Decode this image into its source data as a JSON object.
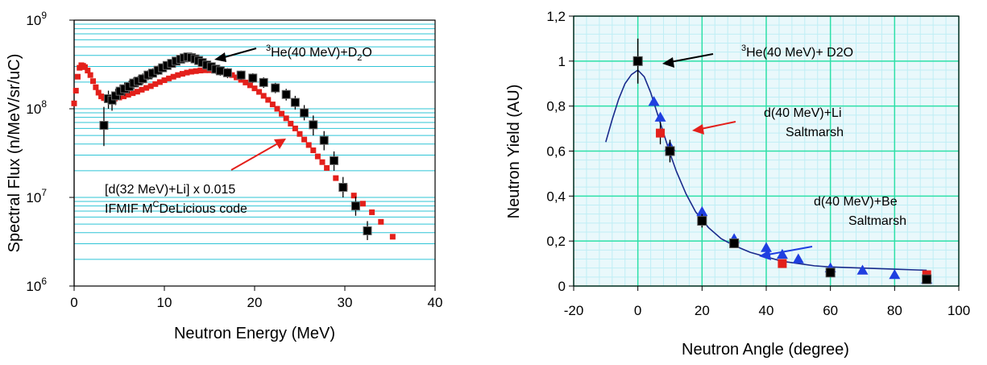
{
  "chart_data": [
    {
      "type": "scatter",
      "xlabel": "Neutron Energy (MeV)",
      "ylabel": "Spectral Flux (n/MeV/sr/uC)",
      "xlim": [
        0,
        40
      ],
      "ylim": [
        1000000,
        1000000000
      ],
      "yscale": "log",
      "grid": "horizontal",
      "x_ticks": [
        "0",
        "10",
        "20",
        "30",
        "40"
      ],
      "y_ticks": [
        {
          "base": "10",
          "exp": "6",
          "value": 1000000
        },
        {
          "base": "10",
          "exp": "7",
          "value": 10000000
        },
        {
          "base": "10",
          "exp": "8",
          "value": 100000000
        },
        {
          "base": "10",
          "exp": "9",
          "value": 1000000000
        }
      ],
      "annotations": {
        "he3_pre": "",
        "he3_sup": "3",
        "he3_main": "He(40 MeV)+D",
        "he3_sub": "2",
        "he3_post": "O",
        "dli_line1": "[d(32 MeV)+Li] x 0.015",
        "dli_line2_pre": "IFMIF M",
        "dli_line2_sup": "C",
        "dli_line2_post": "DeLicious code"
      },
      "series": [
        {
          "color": "#000000",
          "marker": "square",
          "x": [
            3.3,
            3.8,
            4.2,
            4.6,
            5.1,
            5.6,
            6.1,
            6.6,
            7.1,
            7.6,
            8.2,
            8.7,
            9.3,
            9.8,
            10.3,
            10.8,
            11.3,
            11.8,
            12.2,
            12.6,
            13.0,
            13.4,
            13.8,
            14.2,
            14.7,
            15.2,
            15.7,
            16.2,
            17.0,
            18.5,
            19.8,
            21.0,
            22.3,
            23.5,
            24.5,
            25.5,
            26.5,
            27.7,
            28.8,
            29.8,
            31.2,
            32.5
          ],
          "y": [
            65000000,
            130000000,
            125000000,
            140000000,
            158000000,
            168000000,
            178000000,
            195000000,
            205000000,
            218000000,
            240000000,
            252000000,
            272000000,
            290000000,
            308000000,
            325000000,
            345000000,
            362000000,
            375000000,
            385000000,
            378000000,
            365000000,
            350000000,
            332000000,
            312000000,
            298000000,
            280000000,
            268000000,
            255000000,
            240000000,
            222000000,
            198000000,
            172000000,
            145000000,
            118000000,
            90000000,
            66000000,
            44000000,
            26000000,
            13000000,
            8000000,
            4200000
          ],
          "err_low": [
            38000000,
            100000000,
            95000000,
            110000000,
            128000000,
            140000000,
            150000000,
            165000000,
            175000000,
            188000000,
            210000000,
            222000000,
            240000000,
            258000000,
            276000000,
            290000000,
            308000000,
            325000000,
            335000000,
            345000000,
            338000000,
            326000000,
            312000000,
            296000000,
            278000000,
            265000000,
            248000000,
            236000000,
            222000000,
            212000000,
            196000000,
            172000000,
            150000000,
            124000000,
            98000000,
            74000000,
            50000000,
            34000000,
            20000000,
            10000000,
            6200000,
            3300000
          ],
          "err_high": [
            105000000,
            160000000,
            152000000,
            168000000,
            188000000,
            198000000,
            208000000,
            225000000,
            235000000,
            250000000,
            272000000,
            286000000,
            308000000,
            325000000,
            342000000,
            360000000,
            382000000,
            400000000,
            415000000,
            425000000,
            418000000,
            404000000,
            390000000,
            368000000,
            348000000,
            332000000,
            312000000,
            300000000,
            288000000,
            270000000,
            252000000,
            226000000,
            196000000,
            168000000,
            140000000,
            110000000,
            84000000,
            56000000,
            33000000,
            17000000,
            10200000,
            5400000
          ]
        },
        {
          "color": "#e3201b",
          "marker": "square",
          "x": [
            0.0,
            0.2,
            0.4,
            0.6,
            0.8,
            1.0,
            1.2,
            1.5,
            1.8,
            2.1,
            2.4,
            2.7,
            3.0,
            3.3,
            3.6,
            4.0,
            4.5,
            5.0,
            5.5,
            6.0,
            6.5,
            7.0,
            7.5,
            8.0,
            8.5,
            9.0,
            9.5,
            10.0,
            10.5,
            11.0,
            11.5,
            12.0,
            12.5,
            13.0,
            13.5,
            14.0,
            14.5,
            15.0,
            15.5,
            16.0,
            16.5,
            17.0,
            17.5,
            18.0,
            18.5,
            19.0,
            19.5,
            20.0,
            20.5,
            21.0,
            21.5,
            22.0,
            22.5,
            23.0,
            23.5,
            24.0,
            24.5,
            25.0,
            25.5,
            26.0,
            26.5,
            27.0,
            27.5,
            28.0,
            29.0,
            30.0,
            31.0,
            32.0,
            33.0,
            34.0,
            35.3
          ],
          "y": [
            115000000,
            160000000,
            230000000,
            290000000,
            310000000,
            305000000,
            295000000,
            270000000,
            240000000,
            205000000,
            175000000,
            152000000,
            138000000,
            132000000,
            128000000,
            128000000,
            130000000,
            134000000,
            138000000,
            144000000,
            150000000,
            156000000,
            164000000,
            172000000,
            180000000,
            190000000,
            200000000,
            210000000,
            220000000,
            230000000,
            240000000,
            248000000,
            256000000,
            262000000,
            266000000,
            270000000,
            272000000,
            272000000,
            270000000,
            266000000,
            260000000,
            250000000,
            240000000,
            226000000,
            212000000,
            198000000,
            184000000,
            170000000,
            155000000,
            140000000,
            126000000,
            112000000,
            100000000,
            88000000,
            78000000,
            68000000,
            60000000,
            52000000,
            45000000,
            39000000,
            34000000,
            29000000,
            25000000,
            21500000,
            16500000,
            13000000,
            10500000,
            8500000,
            6800000,
            5300000,
            3600000
          ]
        }
      ]
    },
    {
      "type": "scatter",
      "xlabel": "Neutron Angle (degree)",
      "ylabel": "Neutron Yield (AU)",
      "xlim": [
        -20,
        100
      ],
      "ylim": [
        0,
        1.2
      ],
      "grid": "both",
      "x_ticks": [
        "-20",
        "0",
        "20",
        "40",
        "60",
        "80",
        "100"
      ],
      "y_ticks": [
        "0",
        "0,2",
        "0,4",
        "0,6",
        "0,8",
        "1",
        "1,2"
      ],
      "annotations": {
        "he3_sup": "3",
        "he3_main": "He(40 MeV)+ D2O",
        "dli_line1": "d(40 MeV)+Li",
        "dli_line2": "Saltmarsh",
        "dbe_line1": "d(40 MeV)+Be",
        "dbe_line2": "Saltmarsh"
      },
      "series": [
        {
          "color": "#000000",
          "marker": "square",
          "x": [
            0,
            10,
            20,
            30,
            60,
            90
          ],
          "y": [
            1.0,
            0.6,
            0.29,
            0.19,
            0.06,
            0.03
          ],
          "err": [
            0.1,
            0.05,
            0.03,
            0.02,
            0.01,
            0.01
          ]
        },
        {
          "color": "#e3201b",
          "marker": "square",
          "x": [
            7,
            45,
            90
          ],
          "y": [
            0.68,
            0.1,
            0.05
          ],
          "err": [
            0.05,
            0,
            0
          ]
        },
        {
          "color": "#1f3fe0",
          "marker": "triangle",
          "x": [
            5,
            7,
            10,
            20,
            30,
            40,
            45,
            50,
            60,
            70,
            80,
            90
          ],
          "y": [
            0.82,
            0.75,
            0.62,
            0.33,
            0.21,
            0.17,
            0.14,
            0.12,
            0.08,
            0.07,
            0.05,
            0.03
          ]
        },
        {
          "color": "#1a2a8c",
          "marker": "line",
          "x": [
            -10,
            -8,
            -6,
            -4,
            -2,
            0,
            2,
            4,
            6,
            8,
            10,
            12,
            15,
            18,
            22,
            26,
            30,
            35,
            40,
            45,
            50,
            55,
            60,
            70,
            80,
            90
          ],
          "y": [
            0.64,
            0.74,
            0.83,
            0.9,
            0.94,
            0.96,
            0.93,
            0.86,
            0.77,
            0.68,
            0.59,
            0.51,
            0.41,
            0.33,
            0.26,
            0.21,
            0.18,
            0.15,
            0.13,
            0.11,
            0.1,
            0.09,
            0.085,
            0.08,
            0.075,
            0.07
          ]
        }
      ]
    }
  ]
}
